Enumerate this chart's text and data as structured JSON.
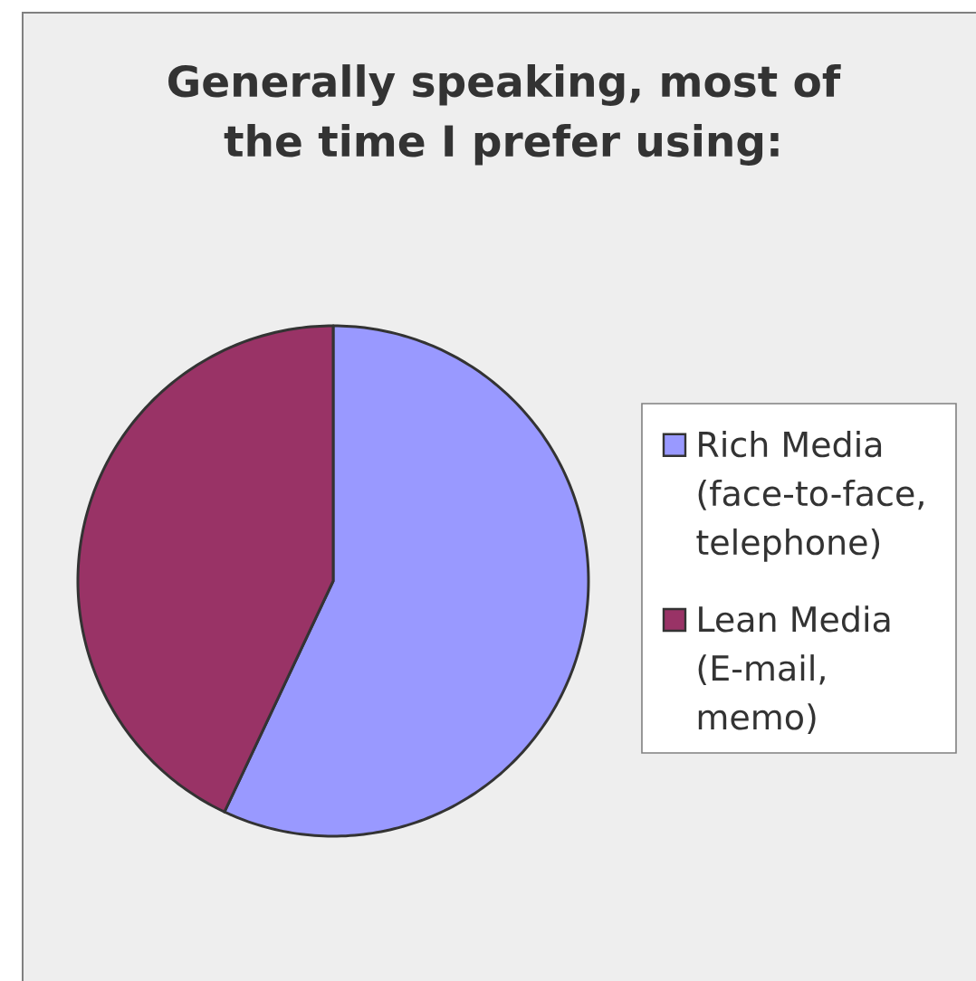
{
  "chart_data": {
    "type": "pie",
    "title": "Generally speaking, most of the time I prefer using:",
    "categories": [
      "Rich Media (face-to-face, telephone)",
      "Lean Media (E-mail, memo)"
    ],
    "values": [
      57,
      43
    ],
    "colors": [
      "#9999ff",
      "#993366"
    ],
    "legend": "right"
  }
}
